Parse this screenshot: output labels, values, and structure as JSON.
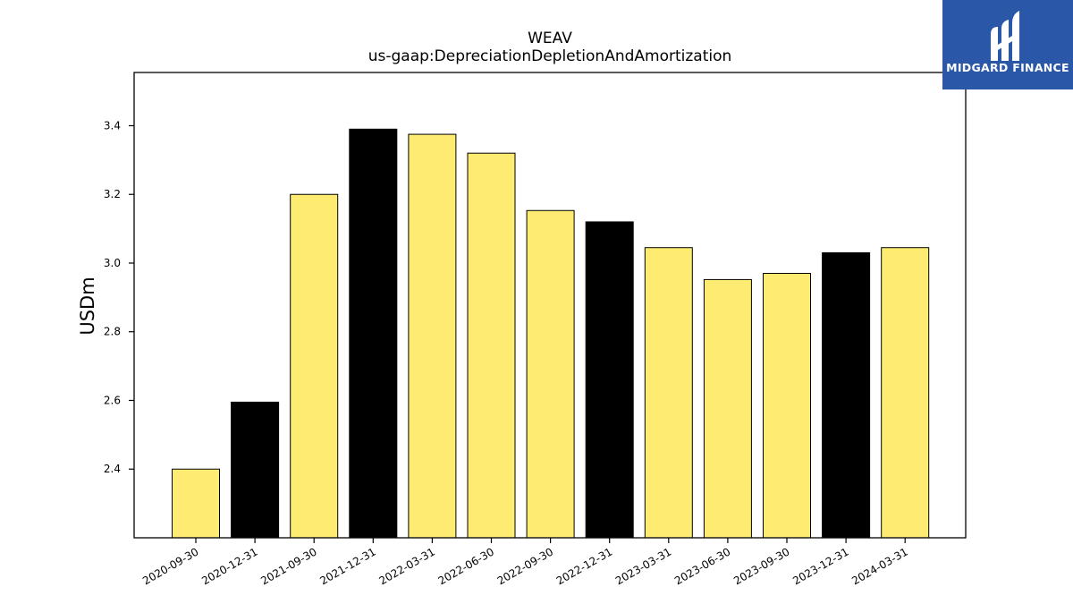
{
  "chart_data": {
    "type": "bar",
    "title": "WEAV",
    "subtitle": "us-gaap:DepreciationDepletionAndAmortization",
    "xlabel": "",
    "ylabel": "USDm",
    "categories": [
      "2020-09-30",
      "2020-12-31",
      "2021-09-30",
      "2021-12-31",
      "2022-03-31",
      "2022-06-30",
      "2022-09-30",
      "2022-12-31",
      "2023-03-31",
      "2023-06-30",
      "2023-09-30",
      "2023-12-31",
      "2024-03-31"
    ],
    "values": [
      2.4,
      2.595,
      3.2,
      3.39,
      3.375,
      3.32,
      3.153,
      3.12,
      3.045,
      2.952,
      2.97,
      3.03,
      3.045
    ],
    "bar_colors": [
      "#fdeb72",
      "#000000",
      "#fdeb72",
      "#000000",
      "#fdeb72",
      "#fdeb72",
      "#fdeb72",
      "#000000",
      "#fdeb72",
      "#fdeb72",
      "#fdeb72",
      "#000000",
      "#fdeb72"
    ],
    "yticks": [
      "2.4",
      "2.6",
      "2.8",
      "3.0",
      "3.2",
      "3.4"
    ],
    "ylim": [
      2.2,
      3.555
    ],
    "grid": false,
    "legend": "none"
  },
  "logo": {
    "text": "MIDGARD FINANCE",
    "background": "#2b57a8",
    "icon": "midgard-logo-icon"
  }
}
